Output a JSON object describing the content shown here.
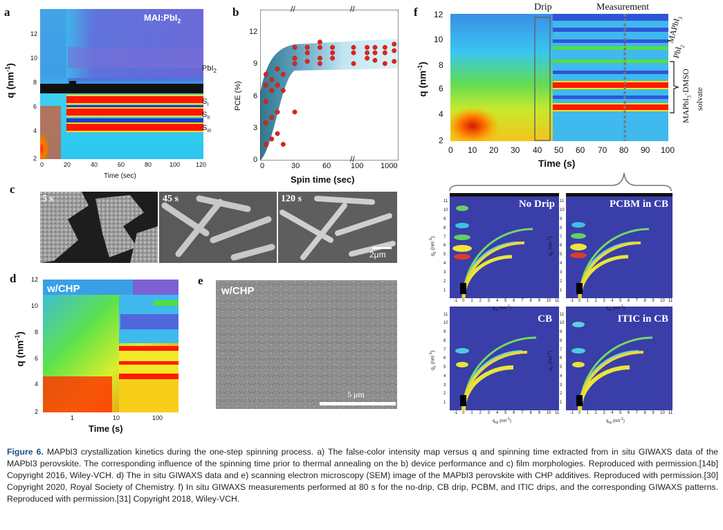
{
  "panel_a": {
    "label": "a",
    "corner_label": "MAI:PbI",
    "corner_label_sub": "2",
    "peak_labels": [
      "PbI",
      "S",
      "S",
      "S"
    ],
    "peak_label_subs": [
      "2",
      "I",
      "II",
      "III"
    ],
    "y_title": "q (nm",
    "y_title_sup": "-1",
    "x_title": "Time (sec)",
    "y_ticks": [
      "2",
      "4",
      "6",
      "8",
      "10",
      "12"
    ],
    "x_ticks": [
      "0",
      "20",
      "40",
      "60",
      "80",
      "100",
      "120"
    ]
  },
  "panel_b": {
    "label": "b",
    "y_title": "PCE (%)",
    "x_title": "Spin time (sec)",
    "y_ticks": [
      "0",
      "3",
      "6",
      "9",
      "12"
    ],
    "x_ticks": [
      "0",
      "30",
      "60",
      "100",
      "1000"
    ]
  },
  "panel_c": {
    "label": "c",
    "times": [
      "5 s",
      "45 s",
      "120 s"
    ],
    "scale_bar": "2μm"
  },
  "panel_d": {
    "label": "d",
    "corner_label": "w/CHP",
    "y_title": "q (nm",
    "y_title_sup": "-1",
    "x_title": "Time (s)",
    "y_ticks": [
      "2",
      "4",
      "6",
      "8",
      "10",
      "12"
    ],
    "x_ticks": [
      "1",
      "10",
      "100"
    ]
  },
  "panel_e": {
    "label": "e",
    "corner_label": "w/CHP",
    "scale_bar": "5 μm"
  },
  "panel_f": {
    "label": "f",
    "top_labels": [
      "Drip",
      "Measurement"
    ],
    "side_labels": [
      "MAPbI",
      "PbI",
      "MAPbI",
      "·DMSO",
      "solvate"
    ],
    "side_label_subs": [
      "3",
      "2",
      "3"
    ],
    "y_title": "q (nm",
    "y_title_sup": "-1",
    "x_title": "Time (s)",
    "y_ticks": [
      "2",
      "4",
      "6",
      "8",
      "10",
      "12"
    ],
    "x_ticks": [
      "0",
      "10",
      "20",
      "30",
      "40",
      "50",
      "60",
      "70",
      "80",
      "90",
      "100"
    ],
    "giwaxs_titles": [
      "No Drip",
      "PCBM in CB",
      "CB",
      "ITIC in CB"
    ],
    "giwaxs_ylabel": "q",
    "giwaxs_ylabel_sub": "z",
    "giwaxs_ylabel_unit": "(nm",
    "giwaxs_xlabel": "q",
    "giwaxs_xlabel_sub": "xy",
    "giwaxs_xlabel_unit": "(nm",
    "giwaxs_unit_sup": "-1",
    "giwaxs_y_ticks": [
      "1",
      "2",
      "3",
      "4",
      "5",
      "6",
      "7",
      "8",
      "9",
      "10",
      "11"
    ],
    "giwaxs_x_ticks": [
      "-1",
      "0",
      "1",
      "2",
      "3",
      "4",
      "5",
      "6",
      "7",
      "8",
      "9",
      "10",
      "11"
    ]
  },
  "caption": {
    "figure_label": "Figure 6.",
    "text": "MAPbI3 crystallization kinetics during the one-step spinning process. a) The false-color intensity map versus q and spinning time extracted from in situ GIWAXS data of the MAPbI3 perovskite. The corresponding influence of the spinning time prior to thermal annealing on the b) device performance and c) film morphologies. Reproduced with permission.[14b] Copyright 2016, Wiley-VCH. d) The in situ GIWAXS data and e) scanning electron microscopy (SEM) image of the MAPbI3 perovskite with CHP additives. Reproduced with permission.[30] Copyright 2020, Royal Society of Chemistry. f) In situ GIWAXS measurements performed at 80 s for the no-drip, CB drip, PCBM, and ITIC drips, and the corresponding GIWAXS patterns. Reproduced with permission.[31] Copyright 2018, Wiley-VCH."
  },
  "chart_data": [
    {
      "panel": "b",
      "type": "scatter",
      "xlabel": "Spin time (sec)",
      "ylabel": "PCE (%)",
      "ylim": [
        0,
        14
      ],
      "x": [
        5,
        5,
        5,
        5,
        5,
        10,
        10,
        10,
        10,
        15,
        15,
        15,
        15,
        20,
        20,
        20,
        30,
        30,
        30,
        30,
        45,
        45,
        45,
        60,
        60,
        60,
        60,
        75,
        75,
        75,
        100,
        100,
        100,
        200,
        200,
        200,
        300,
        300,
        300,
        500,
        500,
        500,
        800,
        800,
        800
      ],
      "y": [
        1.5,
        3.5,
        5.5,
        7,
        8,
        2,
        4,
        6.5,
        7.5,
        2.5,
        4.5,
        7,
        8.5,
        1.5,
        6.5,
        8,
        4.5,
        9,
        9.5,
        10.5,
        9.2,
        10,
        10.5,
        9,
        9.5,
        10.5,
        11,
        9.5,
        10,
        10.5,
        9,
        10,
        10.5,
        9.5,
        10,
        10.5,
        9.3,
        10,
        10.5,
        9,
        10,
        10.5,
        9.2,
        10.2,
        10.8
      ]
    }
  ]
}
